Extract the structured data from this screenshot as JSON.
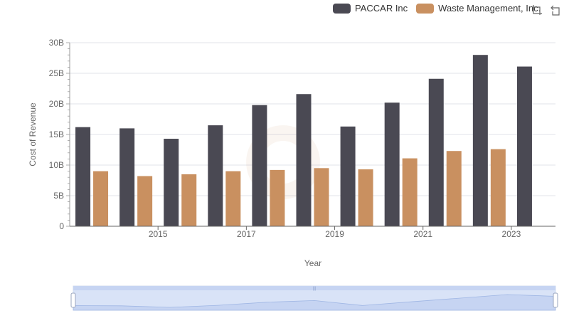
{
  "legend": [
    {
      "name": "PACCAR Inc",
      "color": "#4a4953"
    },
    {
      "name": "Waste Management, Inc.",
      "color": "#c99060"
    }
  ],
  "toolbox": {
    "zoom_icon": "zoom-icon",
    "restore_icon": "restore-icon"
  },
  "chart_data": {
    "type": "bar",
    "categories": [
      "2014",
      "2015",
      "2016",
      "2017",
      "2018",
      "2019",
      "2020",
      "2021",
      "2022",
      "2023",
      "2024"
    ],
    "x_tick_labels": [
      "2015",
      "2017",
      "2019",
      "2021",
      "2023"
    ],
    "xlabel": "Year",
    "ylabel": "Cost of Revenue",
    "ylim": [
      0,
      30000000000
    ],
    "y_tick_labels": [
      "0",
      "5B",
      "10B",
      "15B",
      "20B",
      "25B",
      "30B"
    ],
    "grid": true,
    "legend_position": "top-right",
    "series": [
      {
        "name": "PACCAR Inc",
        "color": "#4a4953",
        "values": [
          16200000000,
          16000000000,
          14300000000,
          16500000000,
          19800000000,
          21600000000,
          16300000000,
          20200000000,
          24100000000,
          28000000000,
          26100000000
        ]
      },
      {
        "name": "Waste Management, Inc.",
        "color": "#c99060",
        "values": [
          9000000000,
          8200000000,
          8500000000,
          9000000000,
          9200000000,
          9500000000,
          9300000000,
          11100000000,
          12300000000,
          12600000000,
          null
        ]
      }
    ]
  }
}
